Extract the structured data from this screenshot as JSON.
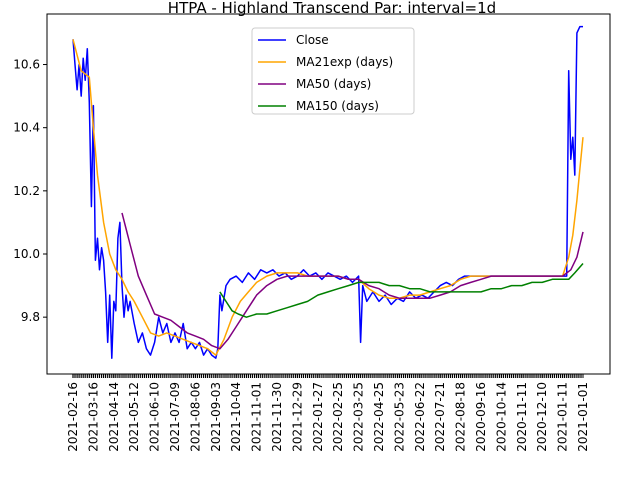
{
  "chart_data": {
    "type": "line",
    "title": "HTPA - Highland Transcend Par: interval=1d",
    "xlabel": "",
    "ylabel": "",
    "ylim": [
      9.62,
      10.76
    ],
    "yticks": [
      "9.8",
      "10.0",
      "10.2",
      "10.4",
      "10.6"
    ],
    "ytick_values": [
      9.8,
      10.0,
      10.2,
      10.4,
      10.6
    ],
    "xtick_labels": [
      "2021-02-16",
      "2021-03-16",
      "2021-04-14",
      "2021-05-12",
      "2021-06-10",
      "2021-07-09",
      "2021-08-06",
      "2021-09-03",
      "2021-10-04",
      "2021-11-01",
      "2021-11-30",
      "2021-12-29",
      "2022-01-27",
      "2022-02-25",
      "2022-03-25",
      "2022-04-25",
      "2022-05-23",
      "2022-06-22",
      "2022-07-21",
      "2022-08-18",
      "2020-09-16",
      "2020-10-14",
      "2020-11-11",
      "2020-12-10",
      "2021-01-11",
      "2021-01-01"
    ],
    "legend_position": "upper-center",
    "grid": false,
    "series": [
      {
        "name": "Close",
        "color": "#0000ff",
        "values": [
          [
            0.0,
            10.68
          ],
          [
            0.1,
            10.6
          ],
          [
            0.2,
            10.52
          ],
          [
            0.3,
            10.6
          ],
          [
            0.4,
            10.5
          ],
          [
            0.5,
            10.62
          ],
          [
            0.6,
            10.55
          ],
          [
            0.7,
            10.65
          ],
          [
            0.8,
            10.48
          ],
          [
            0.9,
            10.15
          ],
          [
            1.0,
            10.47
          ],
          [
            1.1,
            9.98
          ],
          [
            1.2,
            10.05
          ],
          [
            1.3,
            9.95
          ],
          [
            1.4,
            10.02
          ],
          [
            1.5,
            9.98
          ],
          [
            1.6,
            9.88
          ],
          [
            1.7,
            9.72
          ],
          [
            1.8,
            9.87
          ],
          [
            1.9,
            9.67
          ],
          [
            2.0,
            9.85
          ],
          [
            2.1,
            9.82
          ],
          [
            2.2,
            10.05
          ],
          [
            2.3,
            10.1
          ],
          [
            2.4,
            9.9
          ],
          [
            2.5,
            9.8
          ],
          [
            2.6,
            9.87
          ],
          [
            2.7,
            9.82
          ],
          [
            2.8,
            9.85
          ],
          [
            3.0,
            9.78
          ],
          [
            3.2,
            9.72
          ],
          [
            3.4,
            9.75
          ],
          [
            3.6,
            9.7
          ],
          [
            3.8,
            9.68
          ],
          [
            4.0,
            9.72
          ],
          [
            4.2,
            9.8
          ],
          [
            4.4,
            9.75
          ],
          [
            4.6,
            9.78
          ],
          [
            4.8,
            9.72
          ],
          [
            5.0,
            9.75
          ],
          [
            5.2,
            9.72
          ],
          [
            5.4,
            9.78
          ],
          [
            5.6,
            9.7
          ],
          [
            5.8,
            9.72
          ],
          [
            6.0,
            9.7
          ],
          [
            6.2,
            9.72
          ],
          [
            6.4,
            9.68
          ],
          [
            6.6,
            9.7
          ],
          [
            6.8,
            9.68
          ],
          [
            7.0,
            9.67
          ],
          [
            7.1,
            9.7
          ],
          [
            7.2,
            9.87
          ],
          [
            7.3,
            9.82
          ],
          [
            7.5,
            9.9
          ],
          [
            7.7,
            9.92
          ],
          [
            8.0,
            9.93
          ],
          [
            8.3,
            9.91
          ],
          [
            8.6,
            9.94
          ],
          [
            8.9,
            9.92
          ],
          [
            9.2,
            9.95
          ],
          [
            9.5,
            9.94
          ],
          [
            9.8,
            9.95
          ],
          [
            10.1,
            9.93
          ],
          [
            10.4,
            9.94
          ],
          [
            10.7,
            9.92
          ],
          [
            11.0,
            9.93
          ],
          [
            11.3,
            9.95
          ],
          [
            11.6,
            9.93
          ],
          [
            11.9,
            9.94
          ],
          [
            12.2,
            9.92
          ],
          [
            12.5,
            9.94
          ],
          [
            12.8,
            9.93
          ],
          [
            13.1,
            9.92
          ],
          [
            13.4,
            9.93
          ],
          [
            13.7,
            9.91
          ],
          [
            14.0,
            9.93
          ],
          [
            14.1,
            9.72
          ],
          [
            14.2,
            9.9
          ],
          [
            14.4,
            9.85
          ],
          [
            14.7,
            9.88
          ],
          [
            15.0,
            9.85
          ],
          [
            15.3,
            9.87
          ],
          [
            15.6,
            9.84
          ],
          [
            15.9,
            9.86
          ],
          [
            16.2,
            9.85
          ],
          [
            16.5,
            9.88
          ],
          [
            16.8,
            9.86
          ],
          [
            17.1,
            9.87
          ],
          [
            17.4,
            9.86
          ],
          [
            17.7,
            9.88
          ],
          [
            18.0,
            9.9
          ],
          [
            18.3,
            9.91
          ],
          [
            18.6,
            9.9
          ],
          [
            18.9,
            9.92
          ],
          [
            19.2,
            9.93
          ],
          [
            19.6,
            9.93
          ],
          [
            20.0,
            9.93
          ],
          [
            21.0,
            9.93
          ],
          [
            22.0,
            9.93
          ],
          [
            23.0,
            9.93
          ],
          [
            24.0,
            9.93
          ],
          [
            24.2,
            9.93
          ],
          [
            24.3,
            10.58
          ],
          [
            24.4,
            10.3
          ],
          [
            24.5,
            10.37
          ],
          [
            24.6,
            10.25
          ],
          [
            24.7,
            10.7
          ],
          [
            24.85,
            10.72
          ],
          [
            25.0,
            10.72
          ]
        ]
      },
      {
        "name": "MA21exp (days)",
        "color": "#ffa500",
        "values": [
          [
            0.0,
            10.68
          ],
          [
            0.4,
            10.58
          ],
          [
            0.8,
            10.56
          ],
          [
            1.0,
            10.4
          ],
          [
            1.2,
            10.25
          ],
          [
            1.5,
            10.1
          ],
          [
            1.8,
            10.0
          ],
          [
            2.1,
            9.95
          ],
          [
            2.4,
            9.92
          ],
          [
            2.7,
            9.88
          ],
          [
            3.0,
            9.85
          ],
          [
            3.4,
            9.8
          ],
          [
            3.8,
            9.75
          ],
          [
            4.2,
            9.74
          ],
          [
            4.6,
            9.75
          ],
          [
            5.0,
            9.74
          ],
          [
            5.4,
            9.73
          ],
          [
            5.8,
            9.72
          ],
          [
            6.2,
            9.71
          ],
          [
            6.6,
            9.7
          ],
          [
            7.0,
            9.68
          ],
          [
            7.4,
            9.73
          ],
          [
            7.8,
            9.8
          ],
          [
            8.2,
            9.85
          ],
          [
            8.6,
            9.88
          ],
          [
            9.0,
            9.91
          ],
          [
            9.5,
            9.93
          ],
          [
            10.0,
            9.94
          ],
          [
            10.5,
            9.94
          ],
          [
            11.0,
            9.94
          ],
          [
            11.5,
            9.93
          ],
          [
            12.0,
            9.93
          ],
          [
            12.5,
            9.93
          ],
          [
            13.0,
            9.93
          ],
          [
            13.5,
            9.92
          ],
          [
            14.0,
            9.92
          ],
          [
            14.5,
            9.89
          ],
          [
            15.0,
            9.87
          ],
          [
            15.5,
            9.86
          ],
          [
            16.0,
            9.86
          ],
          [
            16.5,
            9.87
          ],
          [
            17.0,
            9.87
          ],
          [
            17.5,
            9.88
          ],
          [
            18.0,
            9.89
          ],
          [
            18.5,
            9.9
          ],
          [
            19.0,
            9.92
          ],
          [
            19.5,
            9.93
          ],
          [
            20.0,
            9.93
          ],
          [
            21.0,
            9.93
          ],
          [
            22.0,
            9.93
          ],
          [
            23.0,
            9.93
          ],
          [
            24.0,
            9.93
          ],
          [
            24.3,
            9.99
          ],
          [
            24.5,
            10.06
          ],
          [
            24.7,
            10.17
          ],
          [
            24.85,
            10.27
          ],
          [
            25.0,
            10.37
          ]
        ]
      },
      {
        "name": "MA50 (days)",
        "color": "#800080",
        "values": [
          [
            2.4,
            10.13
          ],
          [
            2.8,
            10.03
          ],
          [
            3.2,
            9.93
          ],
          [
            3.6,
            9.87
          ],
          [
            4.0,
            9.81
          ],
          [
            4.4,
            9.8
          ],
          [
            4.8,
            9.79
          ],
          [
            5.2,
            9.77
          ],
          [
            5.6,
            9.75
          ],
          [
            6.0,
            9.74
          ],
          [
            6.4,
            9.73
          ],
          [
            6.8,
            9.71
          ],
          [
            7.2,
            9.7
          ],
          [
            7.6,
            9.73
          ],
          [
            8.0,
            9.77
          ],
          [
            8.5,
            9.82
          ],
          [
            9.0,
            9.87
          ],
          [
            9.5,
            9.9
          ],
          [
            10.0,
            9.92
          ],
          [
            10.5,
            9.93
          ],
          [
            11.0,
            9.93
          ],
          [
            11.5,
            9.93
          ],
          [
            12.0,
            9.93
          ],
          [
            12.5,
            9.93
          ],
          [
            13.0,
            9.93
          ],
          [
            13.5,
            9.92
          ],
          [
            14.0,
            9.92
          ],
          [
            14.5,
            9.9
          ],
          [
            15.0,
            9.89
          ],
          [
            15.5,
            9.87
          ],
          [
            16.0,
            9.86
          ],
          [
            16.5,
            9.86
          ],
          [
            17.0,
            9.86
          ],
          [
            17.5,
            9.86
          ],
          [
            18.0,
            9.87
          ],
          [
            18.5,
            9.88
          ],
          [
            19.0,
            9.9
          ],
          [
            19.5,
            9.91
          ],
          [
            20.0,
            9.92
          ],
          [
            20.5,
            9.93
          ],
          [
            21.0,
            9.93
          ],
          [
            22.0,
            9.93
          ],
          [
            23.0,
            9.93
          ],
          [
            24.0,
            9.93
          ],
          [
            24.4,
            9.95
          ],
          [
            24.7,
            9.99
          ],
          [
            25.0,
            10.07
          ]
        ]
      },
      {
        "name": "MA150 (days)",
        "color": "#008000",
        "values": [
          [
            7.2,
            9.88
          ],
          [
            7.5,
            9.85
          ],
          [
            7.8,
            9.82
          ],
          [
            8.1,
            9.81
          ],
          [
            8.5,
            9.8
          ],
          [
            9.0,
            9.81
          ],
          [
            9.5,
            9.81
          ],
          [
            10.0,
            9.82
          ],
          [
            10.5,
            9.83
          ],
          [
            11.0,
            9.84
          ],
          [
            11.5,
            9.85
          ],
          [
            12.0,
            9.87
          ],
          [
            12.5,
            9.88
          ],
          [
            13.0,
            9.89
          ],
          [
            13.5,
            9.9
          ],
          [
            14.0,
            9.91
          ],
          [
            14.5,
            9.91
          ],
          [
            15.0,
            9.91
          ],
          [
            15.5,
            9.9
          ],
          [
            16.0,
            9.9
          ],
          [
            16.5,
            9.89
          ],
          [
            17.0,
            9.89
          ],
          [
            17.5,
            9.88
          ],
          [
            18.0,
            9.88
          ],
          [
            18.5,
            9.88
          ],
          [
            19.0,
            9.88
          ],
          [
            19.5,
            9.88
          ],
          [
            20.0,
            9.88
          ],
          [
            20.5,
            9.89
          ],
          [
            21.0,
            9.89
          ],
          [
            21.5,
            9.9
          ],
          [
            22.0,
            9.9
          ],
          [
            22.5,
            9.91
          ],
          [
            23.0,
            9.91
          ],
          [
            23.5,
            9.92
          ],
          [
            24.0,
            9.92
          ],
          [
            24.3,
            9.92
          ],
          [
            24.6,
            9.94
          ],
          [
            25.0,
            9.97
          ]
        ]
      }
    ]
  }
}
